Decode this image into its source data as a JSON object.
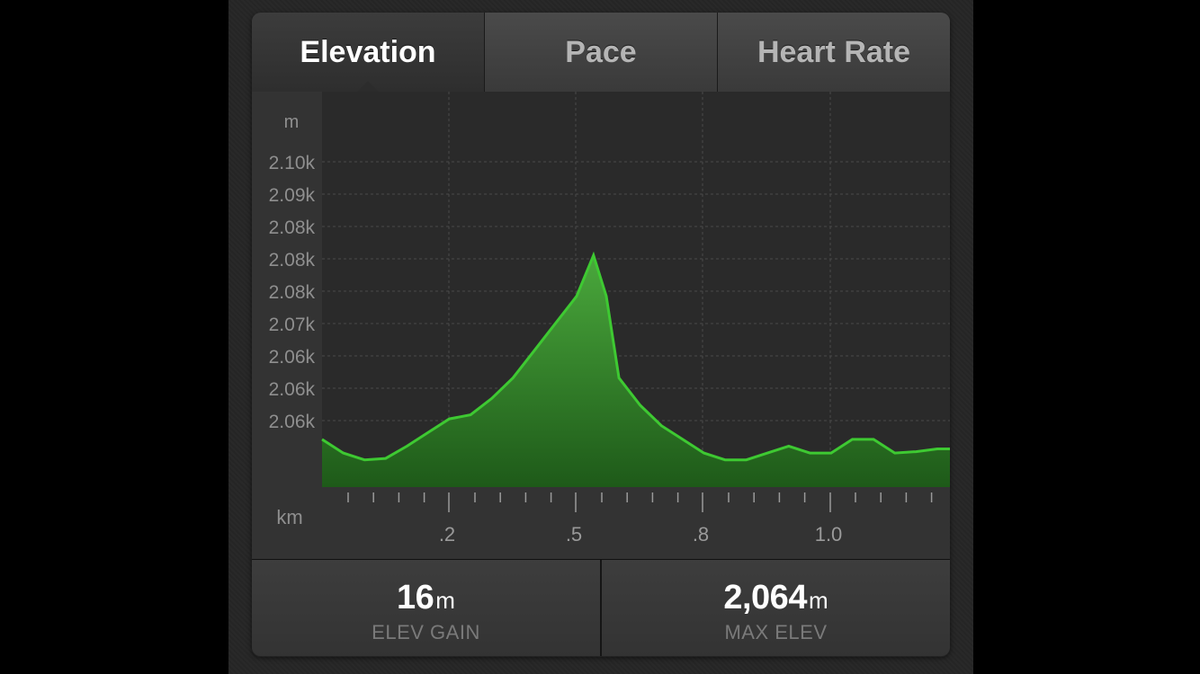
{
  "tabs": [
    {
      "label": "Elevation",
      "active": true
    },
    {
      "label": "Pace",
      "active": false
    },
    {
      "label": "Heart Rate",
      "active": false
    }
  ],
  "colors": {
    "area_fill_top": "#4aa83c",
    "area_fill_bottom": "#1e5a19",
    "area_line": "#3ec932",
    "grid": "#4a4a4a",
    "tick_label": "#8f8f8f"
  },
  "chart_data": {
    "type": "area",
    "xlabel": "km",
    "ylabel": "m",
    "y_tick_labels": [
      "2.10k",
      "2.09k",
      "2.08k",
      "2.08k",
      "2.08k",
      "2.07k",
      "2.06k",
      "2.06k",
      "2.06k"
    ],
    "x_tick_labels": [
      ".2",
      ".5",
      ".8",
      "1.0"
    ],
    "xlim": [
      0,
      1.48
    ],
    "ylim": [
      2042,
      2071
    ],
    "grid": true,
    "series": [
      {
        "x": [
          0,
          0.05,
          0.1,
          0.15,
          0.2,
          0.25,
          0.3,
          0.35,
          0.4,
          0.45,
          0.5,
          0.55,
          0.6,
          0.64,
          0.67,
          0.7,
          0.75,
          0.8,
          0.85,
          0.9,
          0.95,
          1.0,
          1.05,
          1.1,
          1.15,
          1.2,
          1.25,
          1.3,
          1.35,
          1.4,
          1.45,
          1.48
        ],
        "y": [
          2045.5,
          2044.5,
          2044.0,
          2044.1,
          2045.0,
          2046.0,
          2047.0,
          2047.3,
          2048.5,
          2050.0,
          2052.0,
          2054.0,
          2056.0,
          2059.0,
          2056.0,
          2050.0,
          2048.0,
          2046.5,
          2045.5,
          2044.5,
          2044.0,
          2044.0,
          2044.5,
          2045.0,
          2044.5,
          2044.5,
          2045.5,
          2045.5,
          2044.5,
          2044.6,
          2044.8,
          2044.8
        ]
      }
    ]
  },
  "stats": [
    {
      "value": "16",
      "unit": "m",
      "label": "ELEV GAIN"
    },
    {
      "value": "2,064",
      "unit": "m",
      "label": "MAX ELEV"
    }
  ]
}
